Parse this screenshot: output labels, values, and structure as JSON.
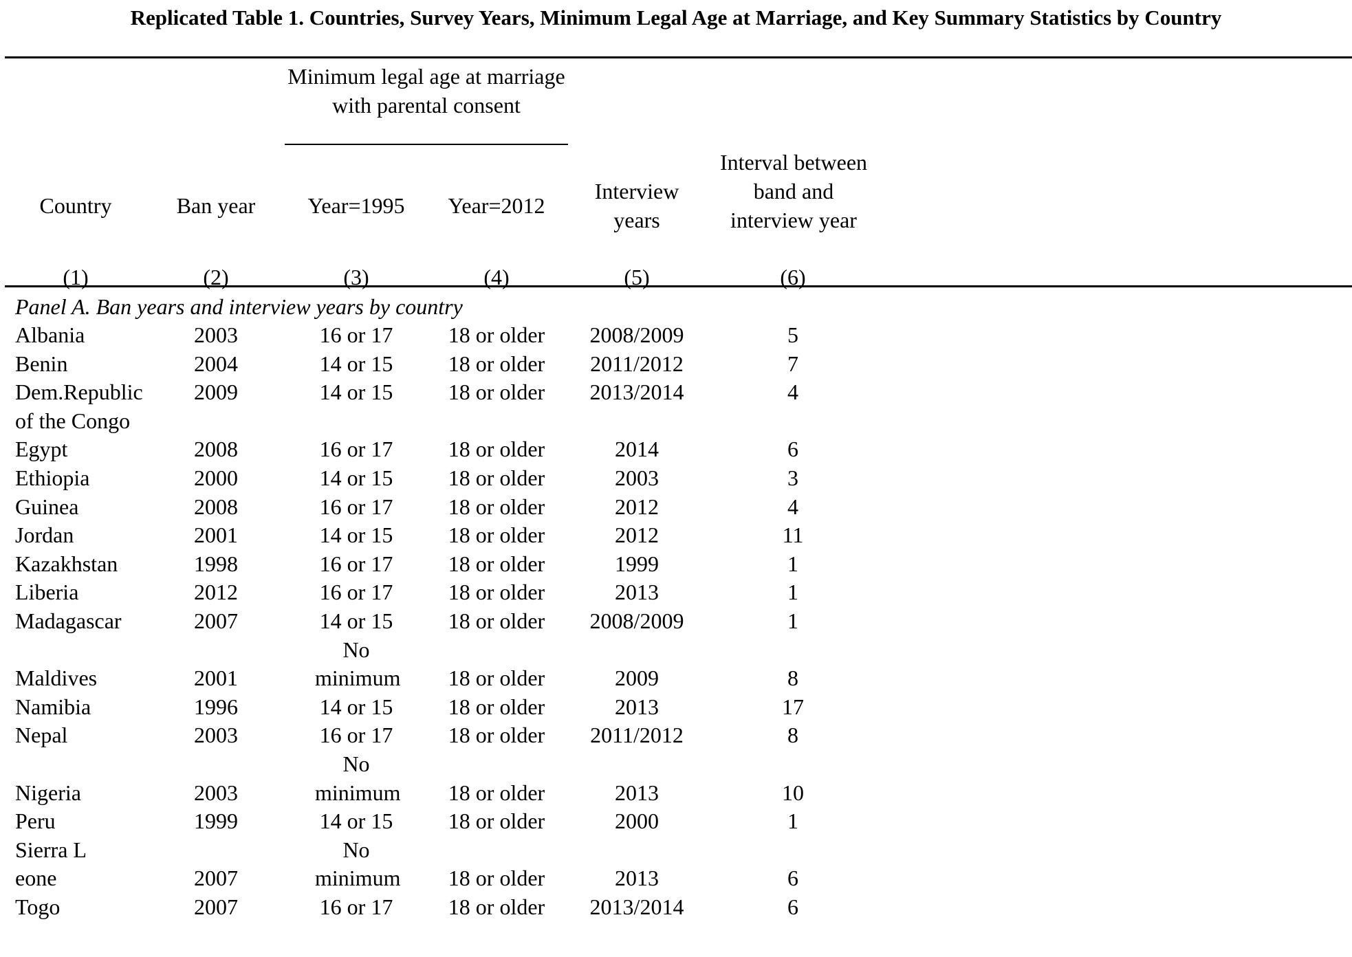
{
  "title": "Replicated Table 1. Countries, Survey Years, Minimum Legal Age at Marriage, and Key Summary Statistics by Country",
  "header": {
    "group_label": "Minimum legal age at marriage with parental consent",
    "columns": [
      {
        "label": "Country",
        "number": "(1)"
      },
      {
        "label": "Ban year",
        "number": "(2)"
      },
      {
        "label": "Year=1995",
        "number": "(3)"
      },
      {
        "label": "Year=2012",
        "number": "(4)"
      },
      {
        "label": "Interview years",
        "number": "(5)"
      },
      {
        "label": "Interval between band and interview year",
        "number": "(6)"
      }
    ]
  },
  "panel_a": {
    "label": "Panel A. Ban years and interview years by country",
    "rows": [
      {
        "country": "Albania",
        "ban_year": "2003",
        "age_1995": "16 or 17",
        "age_2012": "18 or older",
        "interview_years": "2008/2009",
        "interval": "5"
      },
      {
        "country": "Benin",
        "ban_year": "2004",
        "age_1995": "14 or 15",
        "age_2012": "18 or older",
        "interview_years": "2011/2012",
        "interval": "7"
      },
      {
        "country": "Dem.Republic of the Congo",
        "ban_year": "2009",
        "age_1995": "14 or 15",
        "age_2012": "18 or older",
        "interview_years": "2013/2014",
        "interval": "4"
      },
      {
        "country": "Egypt",
        "ban_year": "2008",
        "age_1995": "16 or 17",
        "age_2012": "18 or older",
        "interview_years": "2014",
        "interval": "6"
      },
      {
        "country": "Ethiopia",
        "ban_year": "2000",
        "age_1995": "14 or 15",
        "age_2012": "18 or older",
        "interview_years": "2003",
        "interval": "3"
      },
      {
        "country": "Guinea",
        "ban_year": "2008",
        "age_1995": "16 or 17",
        "age_2012": "18 or older",
        "interview_years": "2012",
        "interval": "4"
      },
      {
        "country": "Jordan",
        "ban_year": "2001",
        "age_1995": "14 or 15",
        "age_2012": "18 or older",
        "interview_years": "2012",
        "interval": "11"
      },
      {
        "country": "Kazakhstan",
        "ban_year": "1998",
        "age_1995": "16 or 17",
        "age_2012": "18 or older",
        "interview_years": "1999",
        "interval": "1"
      },
      {
        "country": "Liberia",
        "ban_year": "2012",
        "age_1995": "16 or 17",
        "age_2012": "18 or older",
        "interview_years": "2013",
        "interval": "1"
      },
      {
        "country": "Madagascar",
        "ban_year": "2007",
        "age_1995": "14 or 15",
        "age_2012": "18 or older",
        "interview_years": "2008/2009",
        "interval": "1"
      },
      {
        "country": "Maldives",
        "ban_year": "2001",
        "age_1995": "No minimum",
        "age_2012": "18 or older",
        "interview_years": "2009",
        "interval": "8"
      },
      {
        "country": "Namibia",
        "ban_year": "1996",
        "age_1995": "14 or 15",
        "age_2012": "18 or older",
        "interview_years": "2013",
        "interval": "17"
      },
      {
        "country": "Nepal",
        "ban_year": "2003",
        "age_1995": "16 or 17",
        "age_2012": "18 or older",
        "interview_years": "2011/2012",
        "interval": "8"
      },
      {
        "country": "Nigeria",
        "ban_year": "2003",
        "age_1995": "No minimum",
        "age_2012": "18 or older",
        "interview_years": "2013",
        "interval": "10"
      },
      {
        "country": "Peru",
        "ban_year": "1999",
        "age_1995": "14 or 15",
        "age_2012": "18 or older",
        "interview_years": "2000",
        "interval": "1"
      },
      {
        "country": "Sierra Leone",
        "ban_year": "2007",
        "age_1995": "No minimum",
        "age_2012": "18 or older",
        "interview_years": "2013",
        "interval": "6"
      },
      {
        "country": "Togo",
        "ban_year": "2007",
        "age_1995": "16 or 17",
        "age_2012": "18 or older",
        "interview_years": "2013/2014",
        "interval": "6"
      }
    ]
  }
}
